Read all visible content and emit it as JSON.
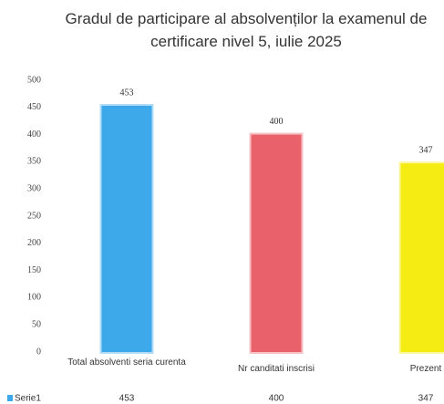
{
  "chart_data": {
    "type": "bar",
    "title": "Gradul de participare al absolvenților la examenul de certificare nivel 5, iulie 2025",
    "categories": [
      "Total absolventi seria curenta",
      "Nr canditati inscrisi",
      "Prezent"
    ],
    "series": [
      {
        "name": "Serie1",
        "colors": [
          "#3da8ea",
          "#e9616b",
          "#f4ec12"
        ],
        "values": [
          453,
          400,
          347
        ]
      }
    ],
    "ylim": [
      0,
      500
    ],
    "yticks": [
      0,
      50,
      100,
      150,
      200,
      250,
      300,
      350,
      400,
      450,
      500
    ],
    "grid": false,
    "legend": "bottom-left"
  }
}
